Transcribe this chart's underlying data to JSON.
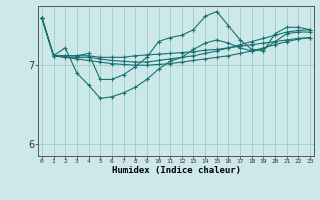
{
  "title": "",
  "xlabel": "Humidex (Indice chaleur)",
  "background_color": "#cce8e8",
  "grid_color": "#99cccc",
  "line_color": "#1a7070",
  "x_ticks": [
    0,
    1,
    2,
    3,
    4,
    5,
    6,
    7,
    8,
    9,
    10,
    11,
    12,
    13,
    14,
    15,
    16,
    17,
    18,
    19,
    20,
    21,
    22,
    23
  ],
  "ylim": [
    5.85,
    7.75
  ],
  "xlim": [
    -0.3,
    23.3
  ],
  "y_ticks": [
    6,
    7
  ],
  "series": [
    {
      "x": [
        0,
        1,
        2,
        3,
        4,
        5,
        6,
        7,
        8,
        9,
        10,
        11,
        12,
        13,
        14,
        15,
        16,
        17,
        18,
        19,
        20,
        21,
        22,
        23
      ],
      "y": [
        7.6,
        7.12,
        7.12,
        7.12,
        7.12,
        7.1,
        7.1,
        7.1,
        7.12,
        7.13,
        7.14,
        7.15,
        7.16,
        7.17,
        7.19,
        7.2,
        7.22,
        7.24,
        7.26,
        7.28,
        7.3,
        7.32,
        7.34,
        7.35
      ]
    },
    {
      "x": [
        0,
        1,
        2,
        3,
        4,
        5,
        6,
        7,
        8,
        9,
        10,
        11,
        12,
        13,
        14,
        15,
        16,
        17,
        18,
        19,
        20,
        21,
        22,
        23
      ],
      "y": [
        7.6,
        7.12,
        7.1,
        7.08,
        7.06,
        7.04,
        7.02,
        7.01,
        7.0,
        7.0,
        7.01,
        7.02,
        7.04,
        7.06,
        7.08,
        7.1,
        7.12,
        7.15,
        7.18,
        7.22,
        7.26,
        7.3,
        7.33,
        7.35
      ]
    },
    {
      "x": [
        0,
        1,
        2,
        3,
        4,
        5,
        6,
        7,
        8,
        9,
        10,
        11,
        12,
        13,
        14,
        15,
        16,
        17,
        18,
        19,
        20,
        21,
        22,
        23
      ],
      "y": [
        7.6,
        7.12,
        7.22,
        6.9,
        6.75,
        6.58,
        6.6,
        6.65,
        6.72,
        6.82,
        6.95,
        7.05,
        7.1,
        7.2,
        7.28,
        7.32,
        7.28,
        7.22,
        7.18,
        7.2,
        7.3,
        7.4,
        7.42,
        7.42
      ]
    },
    {
      "x": [
        0,
        1,
        2,
        3,
        4,
        5,
        6,
        7,
        8,
        9,
        10,
        11,
        12,
        13,
        14,
        15,
        16,
        17,
        18,
        19,
        20,
        21,
        22,
        23
      ],
      "y": [
        7.6,
        7.12,
        7.12,
        7.12,
        7.15,
        6.82,
        6.82,
        6.88,
        6.98,
        7.1,
        7.3,
        7.35,
        7.38,
        7.45,
        7.62,
        7.68,
        7.5,
        7.32,
        7.2,
        7.18,
        7.4,
        7.48,
        7.48,
        7.45
      ]
    },
    {
      "x": [
        0,
        1,
        2,
        3,
        4,
        5,
        6,
        7,
        8,
        9,
        10,
        11,
        12,
        13,
        14,
        15,
        16,
        17,
        18,
        19,
        20,
        21,
        22,
        23
      ],
      "y": [
        7.6,
        7.12,
        7.1,
        7.1,
        7.1,
        7.08,
        7.06,
        7.05,
        7.04,
        7.04,
        7.06,
        7.08,
        7.1,
        7.12,
        7.15,
        7.18,
        7.22,
        7.26,
        7.3,
        7.34,
        7.38,
        7.42,
        7.44,
        7.45
      ]
    }
  ]
}
